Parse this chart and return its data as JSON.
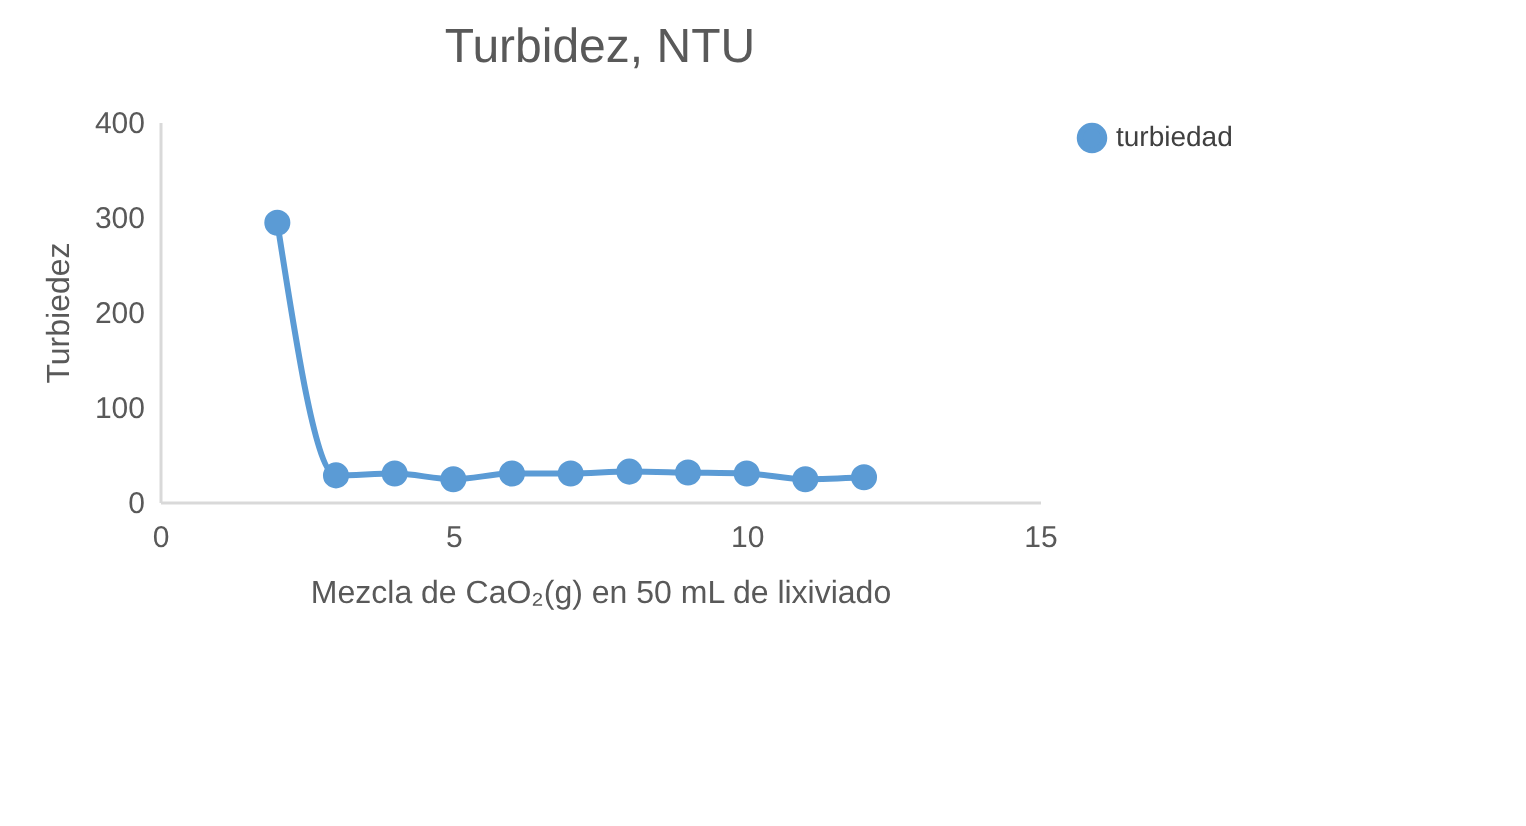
{
  "chart_data": {
    "type": "line",
    "title": "Turbidez, NTU",
    "xlabel": "Mezcla de CaO₂(g) en  50 mL de lixiviado",
    "ylabel": "Turbiedez",
    "x": [
      2,
      3,
      4,
      5,
      6,
      7,
      8,
      9,
      10,
      11,
      12
    ],
    "series": [
      {
        "name": "turbiedad",
        "color": "#5b9bd5",
        "values": [
          294,
          28,
          30,
          24,
          30,
          30,
          32,
          31,
          30,
          24,
          26
        ]
      }
    ],
    "xlim": [
      0,
      15
    ],
    "xticks": [
      0,
      5,
      10,
      15
    ],
    "ylim": [
      0,
      400
    ],
    "yticks": [
      0,
      100,
      200,
      300,
      400
    ],
    "grid": false,
    "legend": "right",
    "marker": "circle",
    "line_style": "solid"
  }
}
